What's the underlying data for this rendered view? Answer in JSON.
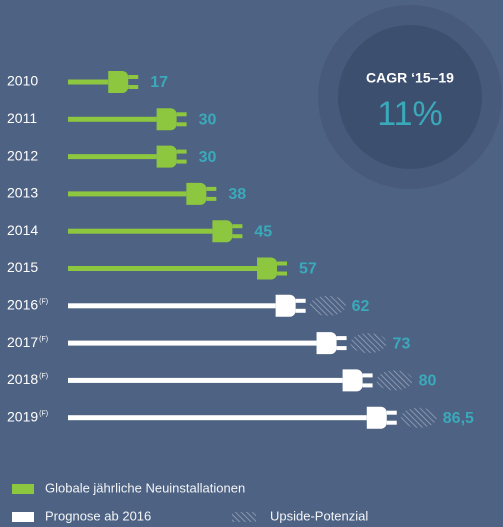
{
  "chart_data": {
    "type": "plug-bar",
    "categories": [
      "2010",
      "2011",
      "2012",
      "2013",
      "2014",
      "2015",
      "2016",
      "2017",
      "2018",
      "2019"
    ],
    "category_note": "(F)",
    "series": [
      {
        "name": "Globale jährliche Neuinstallationen",
        "color": "#8dc63f",
        "values": [
          17,
          30,
          30,
          38,
          45,
          57,
          null,
          null,
          null,
          null
        ],
        "value_labels": [
          "17",
          "30",
          "30",
          "38",
          "45",
          "57",
          null,
          null,
          null,
          null
        ]
      },
      {
        "name": "Prognose ab 2016",
        "color": "#ffffff",
        "values": [
          null,
          null,
          null,
          null,
          null,
          null,
          62,
          73,
          80,
          86.5
        ],
        "value_labels": [
          null,
          null,
          null,
          null,
          null,
          null,
          "62",
          "73",
          "80",
          "86,5"
        ]
      }
    ],
    "upside_label": "Upside-Potenzial",
    "annotation": {
      "label": "CAGR ‘15–19",
      "value": "11%"
    }
  }
}
